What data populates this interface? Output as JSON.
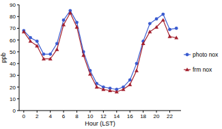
{
  "chart_data": {
    "type": "line",
    "x_label": "Hour (LST)",
    "y_label": "ppb",
    "x": [
      0,
      1,
      2,
      3,
      4,
      5,
      6,
      7,
      8,
      9,
      10,
      11,
      12,
      13,
      14,
      15,
      16,
      17,
      18,
      19,
      20,
      21,
      22,
      23
    ],
    "series": [
      {
        "name": "photo nox",
        "color": "#3a5bd0",
        "marker": "circle",
        "line_style": "solid",
        "values": [
          68,
          62,
          59,
          48,
          48,
          57,
          77,
          85,
          75,
          50,
          34,
          23,
          20,
          19,
          18,
          20,
          26,
          40,
          59,
          74,
          78,
          82,
          69,
          70
        ]
      },
      {
        "name": "frm nox",
        "color": "#a3202e",
        "marker": "triangle",
        "line_style": "solid",
        "values": [
          67,
          59,
          55,
          44,
          44,
          52,
          73,
          83,
          71,
          47,
          31,
          20,
          18,
          17,
          16,
          18,
          22,
          34,
          57,
          67,
          71,
          77,
          63,
          62
        ]
      }
    ],
    "xlim": [
      -0.7,
      23.7
    ],
    "xticks": [
      0,
      2,
      4,
      6,
      8,
      10,
      12,
      14,
      16,
      18,
      20,
      22
    ],
    "ylim": [
      0,
      90
    ],
    "yticks": [
      0,
      10,
      20,
      30,
      40,
      50,
      60,
      70,
      80,
      90
    ],
    "grid": false,
    "legend": "right"
  }
}
